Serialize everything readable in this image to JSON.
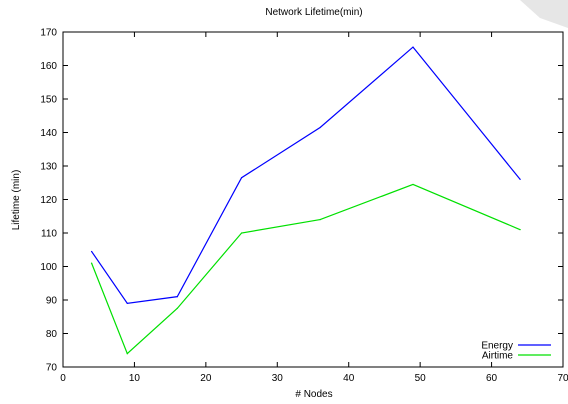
{
  "chart_data": {
    "type": "line",
    "title": "Network Lifetime(min)",
    "xlabel": "# Nodes",
    "ylabel": "Lifetime (min)",
    "xlim": [
      0,
      70
    ],
    "ylim": [
      70,
      170
    ],
    "xticks": [
      0,
      10,
      20,
      30,
      40,
      50,
      60,
      70
    ],
    "yticks": [
      70,
      80,
      90,
      100,
      110,
      120,
      130,
      140,
      150,
      160,
      170
    ],
    "grid": false,
    "legend_position": "bottom-right",
    "series": [
      {
        "name": "Energy",
        "color": "#0000ff",
        "x": [
          4,
          9,
          16,
          25,
          36,
          49,
          64
        ],
        "y": [
          104.5,
          89,
          91,
          126.5,
          141.5,
          165.5,
          126
        ]
      },
      {
        "name": "Airtime",
        "color": "#00e000",
        "x": [
          4,
          9,
          16,
          25,
          36,
          49,
          64
        ],
        "y": [
          101,
          74,
          87.5,
          110,
          114,
          124.5,
          111
        ]
      }
    ]
  }
}
